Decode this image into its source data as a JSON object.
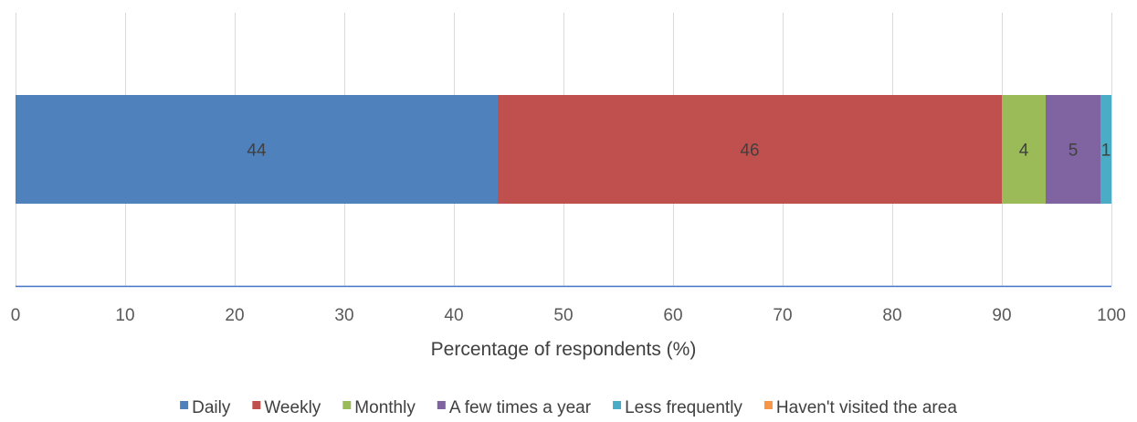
{
  "chart_data": {
    "type": "bar",
    "orientation": "horizontal",
    "stacked": true,
    "categories": [
      ""
    ],
    "series": [
      {
        "name": "Daily",
        "values": [
          44
        ],
        "color": "#4F81BD"
      },
      {
        "name": "Weekly",
        "values": [
          46
        ],
        "color": "#C0504D"
      },
      {
        "name": "Monthly",
        "values": [
          4
        ],
        "color": "#9BBB59"
      },
      {
        "name": "A few times a year",
        "values": [
          5
        ],
        "color": "#8064A2"
      },
      {
        "name": "Less frequently",
        "values": [
          1
        ],
        "color": "#4BACC6"
      },
      {
        "name": "Haven't visited the area",
        "values": [
          0
        ],
        "color": "#F79646"
      }
    ],
    "xlabel": "Percentage of respondents  (%)",
    "xlim": [
      0,
      100
    ],
    "xticks": [
      0,
      10,
      20,
      30,
      40,
      50,
      60,
      70,
      80,
      90,
      100
    ],
    "data_labels": true,
    "grid": "vertical",
    "legend_position": "bottom",
    "axis_line_color": "#4472C4",
    "gridline_color": "#D9D9D9"
  }
}
